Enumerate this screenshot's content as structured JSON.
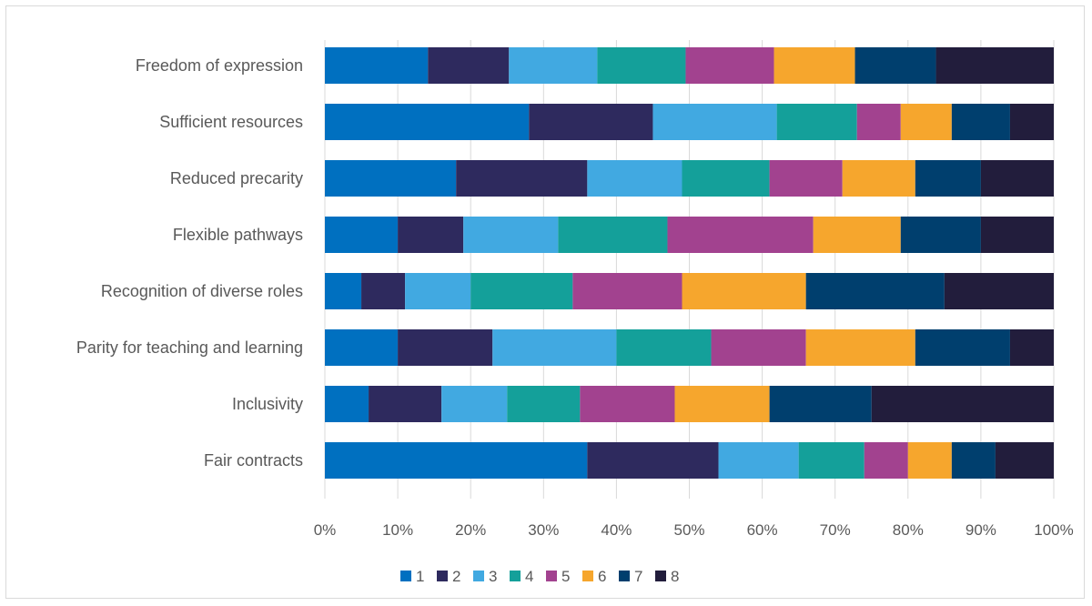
{
  "chart_data": {
    "type": "bar",
    "orientation": "horizontal",
    "stacked": "percent",
    "categories": [
      "Freedom of expression",
      "Sufficient resources",
      "Reduced precarity",
      "Flexible pathways",
      "Recognition of diverse roles",
      "Parity for teaching and learning",
      "Inclusivity",
      "Fair contracts"
    ],
    "series": [
      {
        "name": "1",
        "color": "#0070C0",
        "values": [
          14,
          28,
          18,
          10,
          5,
          10,
          6,
          36
        ]
      },
      {
        "name": "2",
        "color": "#2E2A5E",
        "values": [
          11,
          17,
          18,
          9,
          6,
          13,
          10,
          18
        ]
      },
      {
        "name": "3",
        "color": "#41A9E1",
        "values": [
          12,
          17,
          13,
          13,
          9,
          17,
          9,
          11
        ]
      },
      {
        "name": "4",
        "color": "#14A09A",
        "values": [
          12,
          11,
          12,
          15,
          14,
          13,
          10,
          9
        ]
      },
      {
        "name": "5",
        "color": "#A2428F",
        "values": [
          12,
          6,
          10,
          20,
          15,
          13,
          13,
          6
        ]
      },
      {
        "name": "6",
        "color": "#F6A62D",
        "values": [
          11,
          7,
          10,
          12,
          17,
          15,
          13,
          6
        ]
      },
      {
        "name": "7",
        "color": "#003F6E",
        "values": [
          11,
          8,
          9,
          11,
          19,
          13,
          14,
          6
        ]
      },
      {
        "name": "8",
        "color": "#221D3C",
        "values": [
          16,
          6,
          10,
          10,
          15,
          6,
          25,
          8
        ]
      }
    ],
    "xlim": [
      0,
      100
    ],
    "xticks": [
      "0%",
      "10%",
      "20%",
      "30%",
      "40%",
      "50%",
      "60%",
      "70%",
      "80%",
      "90%",
      "100%"
    ],
    "grid": "vertical",
    "legend_position": "bottom"
  }
}
